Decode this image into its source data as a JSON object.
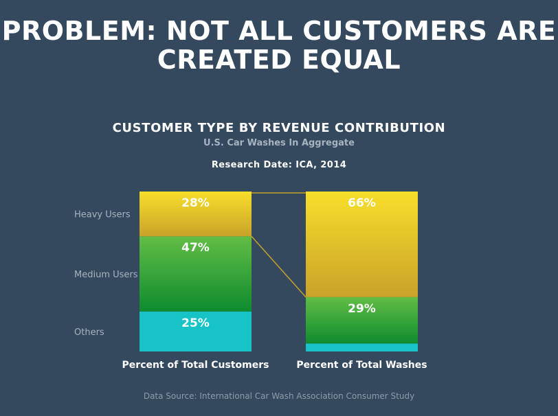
{
  "slide": {
    "title_line1": "PROBLEM: NOT ALL CUSTOMERS ARE",
    "title_line2": "CREATED EQUAL",
    "chart_title": "CUSTOMER TYPE BY REVENUE CONTRIBUTION",
    "chart_subtitle": "U.S. Car Washes In Aggregate",
    "research_date": "Research Date: ICA, 2014",
    "source": "Data Source: International Car Wash Association Consumer Study"
  },
  "chart_data": {
    "type": "bar",
    "stacked": true,
    "normalized": true,
    "categories": [
      "Percent of Total Customers",
      "Percent of Total Washes"
    ],
    "series": [
      {
        "name": "Others",
        "values": [
          25,
          5
        ],
        "labels": [
          "25%",
          ""
        ],
        "color_top": "#17c3c6",
        "color_bottom": "#17c3c6"
      },
      {
        "name": "Medium Users",
        "values": [
          47,
          29
        ],
        "labels": [
          "47%",
          "29%"
        ],
        "color_top": "#62bd45",
        "color_bottom": "#0e8b2f"
      },
      {
        "name": "Heavy Users",
        "values": [
          28,
          66
        ],
        "labels": [
          "28%",
          "66%"
        ],
        "color_top": "#f7df2a",
        "color_bottom": "#c9a22a"
      }
    ],
    "ylim": [
      0,
      100
    ],
    "legend": "left",
    "connector_color": "#c9a22a",
    "text_color": "#ffffff",
    "axis_label_color": "#a8b3c0"
  }
}
